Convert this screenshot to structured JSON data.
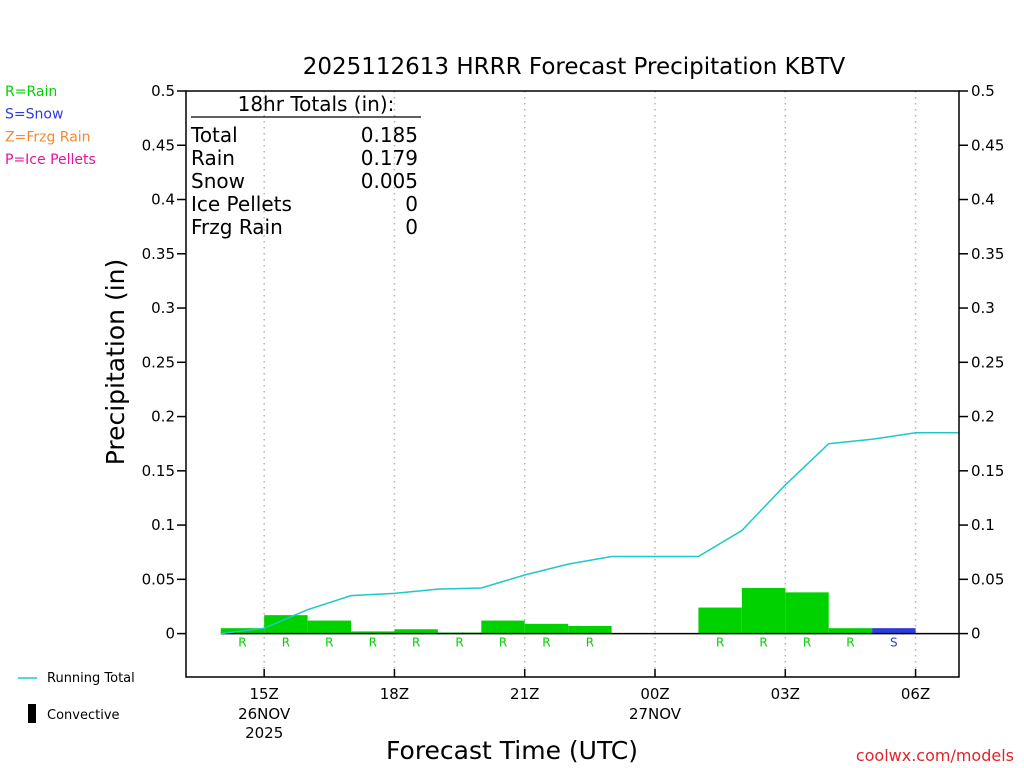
{
  "chart_data": {
    "type": "bar",
    "title": "2025112613 HRRR Forecast Precipitation KBTV",
    "xlabel": "Forecast Time (UTC)",
    "ylabel": "Precipitation (in)",
    "ylim": [
      -0.04,
      0.5
    ],
    "y_ticks": [
      0,
      0.05,
      0.1,
      0.15,
      0.2,
      0.25,
      0.3,
      0.35,
      0.4,
      0.45,
      0.5
    ],
    "y_tick_labels": [
      "0",
      "0.05",
      "0.1",
      "0.15",
      "0.2",
      "0.25",
      "0.3",
      "0.35",
      "0.4",
      "0.45",
      "0.5"
    ],
    "xlim_hours": [
      13.2,
      31.0
    ],
    "x_ticks": [
      {
        "hour": 15,
        "label": "15Z",
        "sub": [
          "26NOV",
          "2025"
        ]
      },
      {
        "hour": 18,
        "label": "18Z",
        "sub": []
      },
      {
        "hour": 21,
        "label": "21Z",
        "sub": []
      },
      {
        "hour": 24,
        "label": "00Z",
        "sub": [
          "27NOV"
        ]
      },
      {
        "hour": 27,
        "label": "03Z",
        "sub": []
      },
      {
        "hour": 30,
        "label": "06Z",
        "sub": []
      }
    ],
    "grid": "dotted vertical at labeled hours",
    "bars": [
      {
        "hour": 15,
        "value": 0.005,
        "ptype": "R"
      },
      {
        "hour": 16,
        "value": 0.017,
        "ptype": "R"
      },
      {
        "hour": 17,
        "value": 0.012,
        "ptype": "R"
      },
      {
        "hour": 18,
        "value": 0.002,
        "ptype": "R"
      },
      {
        "hour": 19,
        "value": 0.004,
        "ptype": "R"
      },
      {
        "hour": 20,
        "value": 0.001,
        "ptype": "R"
      },
      {
        "hour": 21,
        "value": 0.012,
        "ptype": "R"
      },
      {
        "hour": 22,
        "value": 0.009,
        "ptype": "R"
      },
      {
        "hour": 23,
        "value": 0.007,
        "ptype": "R"
      },
      {
        "hour": 24,
        "value": 0.0,
        "ptype": ""
      },
      {
        "hour": 25,
        "value": 0.0,
        "ptype": ""
      },
      {
        "hour": 26,
        "value": 0.024,
        "ptype": "R"
      },
      {
        "hour": 27,
        "value": 0.042,
        "ptype": "R"
      },
      {
        "hour": 28,
        "value": 0.038,
        "ptype": "R"
      },
      {
        "hour": 29,
        "value": 0.005,
        "ptype": "R"
      },
      {
        "hour": 30,
        "value": 0.005,
        "ptype": "S"
      }
    ],
    "running_total": {
      "name": "Running Total",
      "points": [
        [
          14,
          0.0
        ],
        [
          15,
          0.005
        ],
        [
          16,
          0.022
        ],
        [
          17,
          0.035
        ],
        [
          18,
          0.037
        ],
        [
          19,
          0.041
        ],
        [
          20,
          0.042
        ],
        [
          21,
          0.054
        ],
        [
          22,
          0.064
        ],
        [
          23,
          0.071
        ],
        [
          24,
          0.071
        ],
        [
          25,
          0.071
        ],
        [
          26,
          0.095
        ],
        [
          27,
          0.137
        ],
        [
          28,
          0.175
        ],
        [
          29,
          0.179
        ],
        [
          30,
          0.185
        ],
        [
          31,
          0.185
        ]
      ]
    },
    "totals_box": {
      "header": "18hr Totals (in):",
      "rows": [
        {
          "label": "Total",
          "value": "0.185"
        },
        {
          "label": "Rain",
          "value": "0.179"
        },
        {
          "label": "Snow",
          "value": "0.005"
        },
        {
          "label": "Ice Pellets",
          "value": "0"
        },
        {
          "label": "Frzg Rain",
          "value": "0"
        }
      ]
    },
    "ptype_key": [
      {
        "text": "R=Rain",
        "color": "#00d200"
      },
      {
        "text": "S=Snow",
        "color": "#2c3bdc"
      },
      {
        "text": "Z=Frzg Rain",
        "color": "#f28a30"
      },
      {
        "text": "P=Ice Pellets",
        "color": "#e6149b"
      }
    ],
    "legend": [
      {
        "name": "Running Total",
        "symbol": "line",
        "color": "#1fc8c8"
      },
      {
        "name": "Convective",
        "symbol": "bar",
        "color": "#000000"
      }
    ],
    "credit": "coolwx.com/models",
    "colors": {
      "rain": "#00d200",
      "snow": "#2c3bdc",
      "running_total": "#1fc8c8",
      "grid": "#b4b4b4"
    }
  }
}
